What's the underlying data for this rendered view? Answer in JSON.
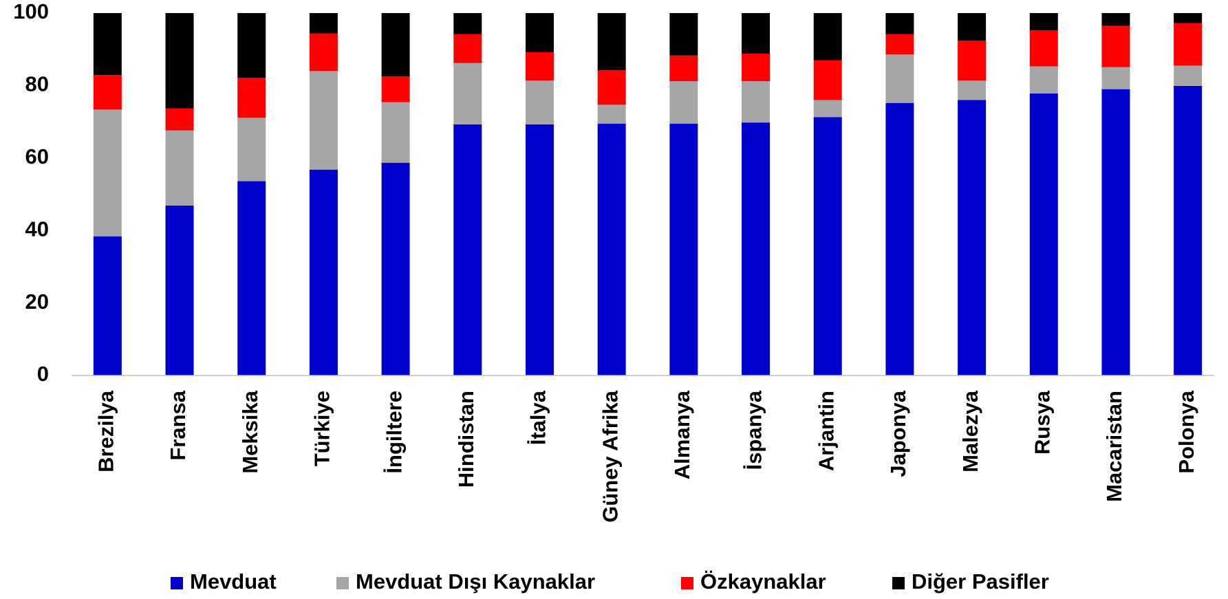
{
  "chart_data": {
    "type": "stacked_bar",
    "categories": [
      "Brezilya",
      "Fransa",
      "Meksika",
      "Türkiye",
      "İngiltere",
      "Hindistan",
      "İtalya",
      "Güney Afrika",
      "Almanya",
      "İspanya",
      "Arjantin",
      "Japonya",
      "Malezya",
      "Rusya",
      "Macaristan",
      "Polonya"
    ],
    "series": [
      {
        "name": "Mevduat",
        "color": "#0000cc",
        "values": [
          38.4,
          46.9,
          53.6,
          56.8,
          58.7,
          69.3,
          69.3,
          69.5,
          69.5,
          69.8,
          71.3,
          75.2,
          76.0,
          77.8,
          79.0,
          79.9
        ]
      },
      {
        "name": "Mevduat Dışı Kaynaklar",
        "color": "#a6a6a6",
        "values": [
          35.0,
          20.7,
          17.5,
          27.2,
          16.7,
          16.9,
          12.1,
          5.2,
          11.7,
          11.4,
          4.7,
          13.4,
          5.4,
          7.5,
          6.1,
          5.6
        ]
      },
      {
        "name": "Özkaynaklar",
        "color": "#ff0000",
        "values": [
          9.5,
          6.1,
          11.0,
          10.4,
          7.1,
          8.0,
          7.8,
          9.5,
          7.1,
          7.6,
          11.0,
          5.6,
          11.0,
          9.9,
          11.4,
          11.7
        ]
      },
      {
        "name": "Diğer Pasifler",
        "color": "#000000",
        "values": [
          17.1,
          26.3,
          17.9,
          5.6,
          17.5,
          5.8,
          10.8,
          15.8,
          11.7,
          11.2,
          13.0,
          5.8,
          7.6,
          4.8,
          3.5,
          2.8
        ]
      }
    ],
    "ylim": [
      0,
      100
    ],
    "yticks": [
      0,
      20,
      40,
      60,
      80,
      100
    ],
    "grid": false,
    "legend": "bottom"
  }
}
